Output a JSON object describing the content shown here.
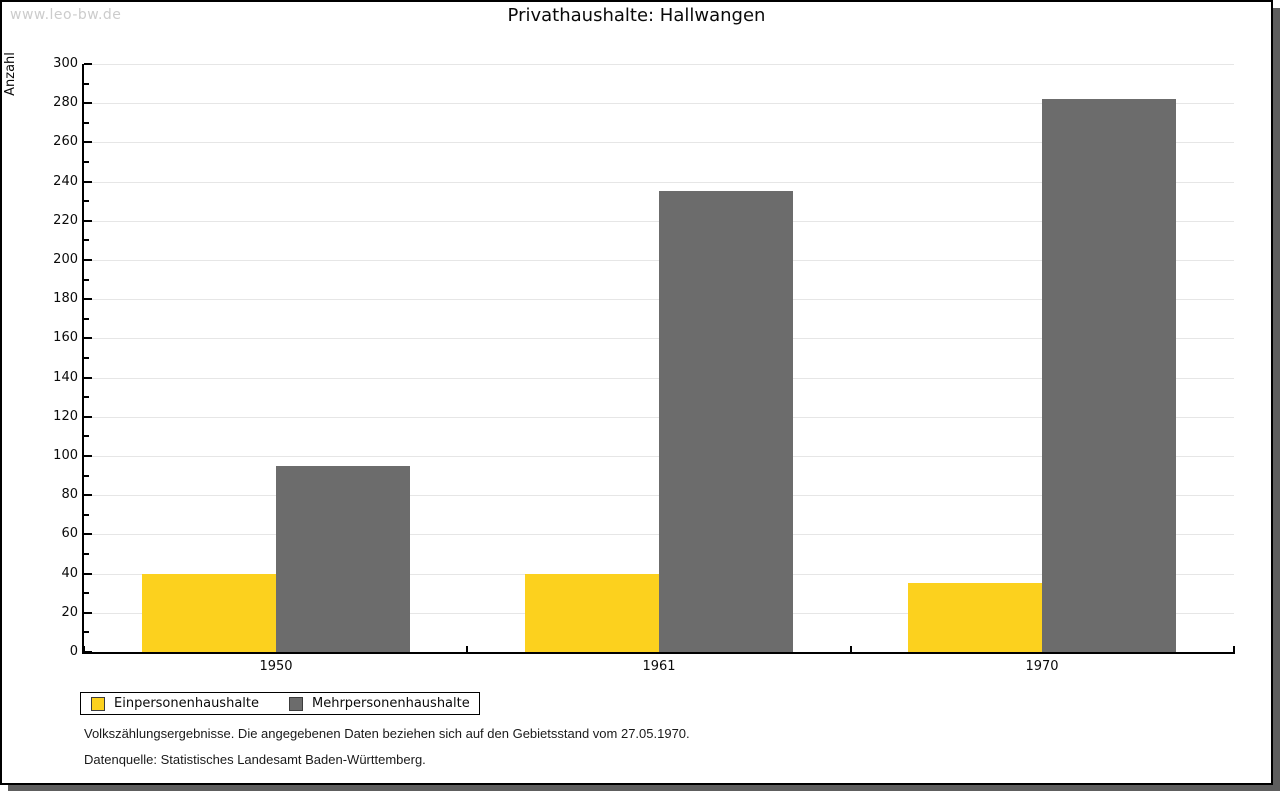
{
  "watermark": "www.leo-bw.de",
  "title": "Privathaushalte: Hallwangen",
  "chart_data": {
    "type": "bar",
    "title": "Privathaushalte: Hallwangen",
    "xlabel": "",
    "ylabel": "Anzahl",
    "categories": [
      "1950",
      "1961",
      "1970"
    ],
    "series": [
      {
        "name": "Einpersonenhaushalte",
        "color": "#fcd11e",
        "values": [
          40,
          40,
          35
        ]
      },
      {
        "name": "Mehrpersonenhaushalte",
        "color": "#6c6c6c",
        "values": [
          95,
          235,
          282
        ]
      }
    ],
    "ylim": [
      0,
      300
    ],
    "ytick_step": 20,
    "minor_tick_step": 10,
    "grid": true,
    "legend_position": "bottom-left"
  },
  "footer": {
    "line1": "Volkszählungsergebnisse. Die angegebenen Daten beziehen sich auf den Gebietsstand vom 27.05.1970.",
    "line2": "Datenquelle: Statistisches Landesamt Baden-Württemberg."
  }
}
